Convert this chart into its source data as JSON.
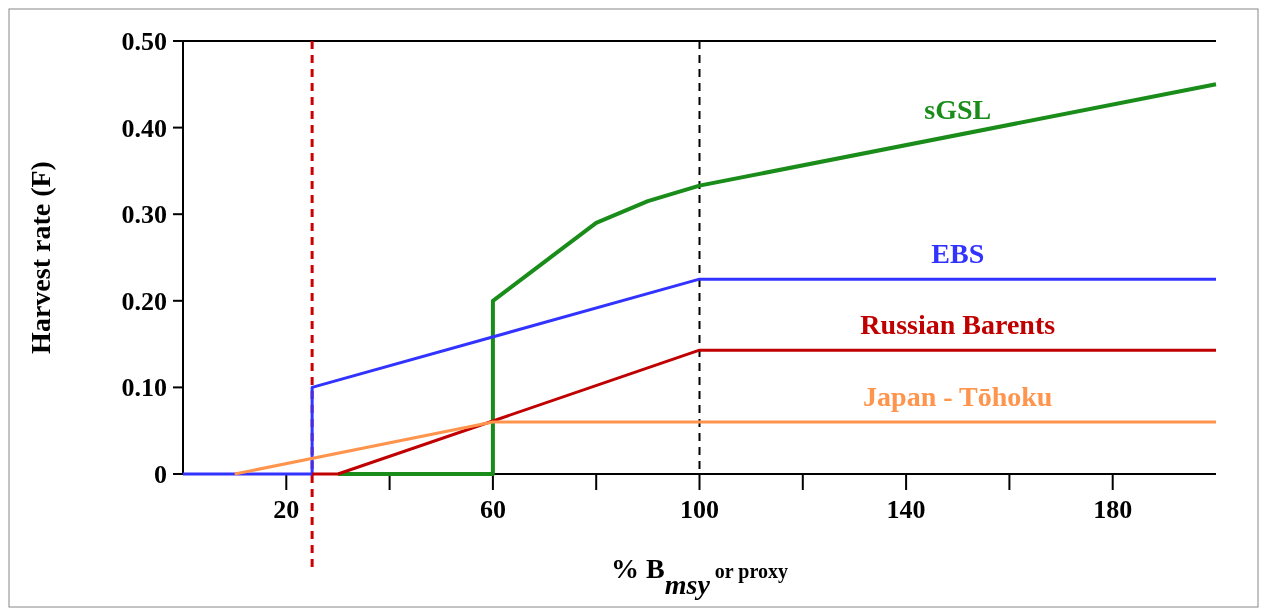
{
  "chart_data": {
    "type": "line",
    "xlabel": "% B$_{msy}$ or proxy",
    "ylabel": "Harvest rate (F)",
    "xlim": [
      0,
      200
    ],
    "ylim": [
      0,
      0.5
    ],
    "xticks": [
      {
        "value": 20,
        "label": "20"
      },
      {
        "value": 40,
        "label": null
      },
      {
        "value": 60,
        "label": "60"
      },
      {
        "value": 80,
        "label": null
      },
      {
        "value": 100,
        "label": "100"
      },
      {
        "value": 120,
        "label": null
      },
      {
        "value": 140,
        "label": "140"
      },
      {
        "value": 160,
        "label": null
      },
      {
        "value": 180,
        "label": "180"
      }
    ],
    "yticks": [
      {
        "value": 0,
        "label": "0"
      },
      {
        "value": 0.1,
        "label": "0.10"
      },
      {
        "value": 0.2,
        "label": "0.20"
      },
      {
        "value": 0.3,
        "label": "0.30"
      },
      {
        "value": 0.4,
        "label": "0.40"
      },
      {
        "value": 0.5,
        "label": "0.50"
      }
    ],
    "grid": false,
    "legend": false,
    "marker": "none",
    "line_style": "solid",
    "series": [
      {
        "name": "sGSL",
        "color": "#1a8c1a",
        "x": [
          30,
          60,
          60,
          70,
          80,
          90,
          100,
          200
        ],
        "values": [
          0,
          0,
          0.2,
          0.245,
          0.29,
          0.315,
          0.333,
          0.45
        ]
      },
      {
        "name": "EBS",
        "color": "#3333ff",
        "x": [
          0,
          25,
          25,
          100,
          200
        ],
        "values": [
          0,
          0,
          0.1,
          0.225,
          0.225
        ]
      },
      {
        "name": "Russian Barents",
        "color": "#c00000",
        "x": [
          25,
          30,
          100,
          200
        ],
        "values": [
          0,
          0,
          0.143,
          0.143
        ]
      },
      {
        "name": "Japan - Tōhoku",
        "color": "#ff944d",
        "x": [
          10,
          60,
          200
        ],
        "values": [
          0,
          0.06,
          0.06
        ]
      }
    ],
    "ref_lines": [
      {
        "axis": "x",
        "value": 25,
        "color": "#cc0000",
        "line_style": "dashed"
      },
      {
        "axis": "x",
        "value": 100,
        "color": "#000000",
        "line_style": "dashed"
      }
    ]
  }
}
